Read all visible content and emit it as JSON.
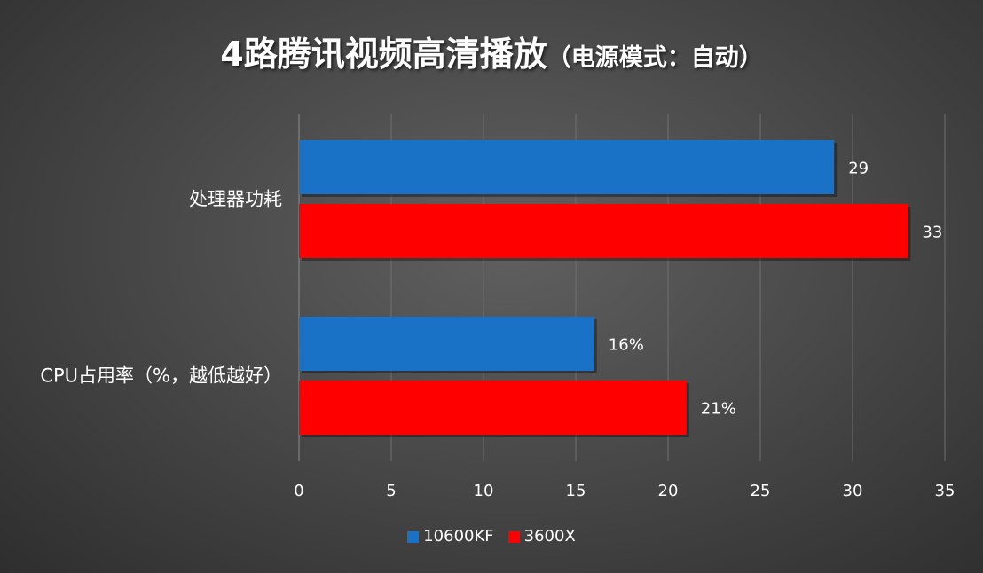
{
  "title": {
    "main": "4路腾讯视频高清播放",
    "sub": "（电源模式：自动）"
  },
  "chart_data": {
    "type": "bar",
    "orientation": "horizontal",
    "categories": [
      "处理器功耗",
      "CPU占用率（%，越低越好）"
    ],
    "series": [
      {
        "name": "10600KF",
        "color": "#1a72c6",
        "values": [
          29,
          16
        ],
        "labels": [
          "29",
          "16%"
        ]
      },
      {
        "name": "3600X",
        "color": "#ff0000",
        "values": [
          33,
          21
        ],
        "labels": [
          "33",
          "21%"
        ]
      }
    ],
    "xlim": [
      0,
      35
    ],
    "xticks": [
      0,
      5,
      10,
      15,
      20,
      25,
      30,
      35
    ],
    "grid": true,
    "legend_position": "bottom"
  }
}
